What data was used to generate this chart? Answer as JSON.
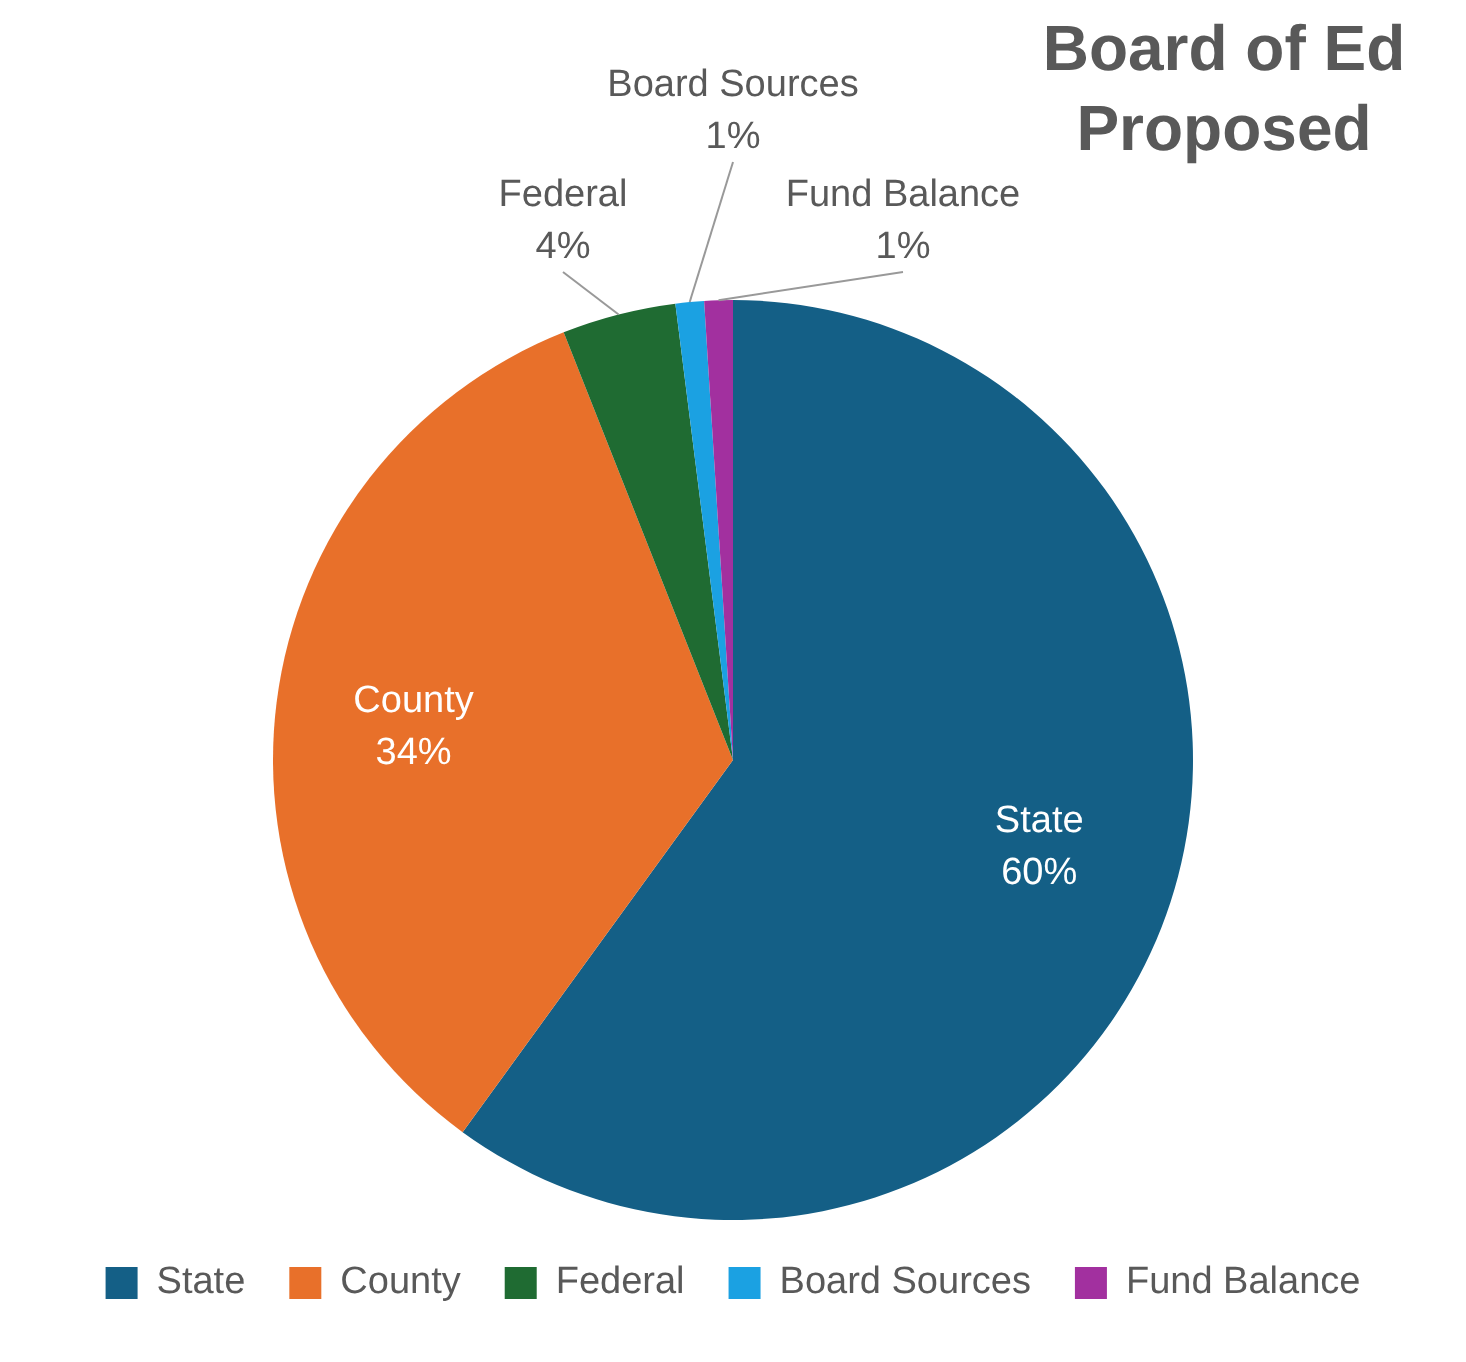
{
  "chart_data": {
    "type": "pie",
    "title": "Board of Ed Proposed",
    "categories": [
      "State",
      "County",
      "Federal",
      "Board Sources",
      "Fund Balance"
    ],
    "values": [
      60,
      34,
      4,
      1,
      1
    ],
    "colors": [
      "#145f86",
      "#e8702a",
      "#1f6b32",
      "#1ba1e2",
      "#a2309f"
    ],
    "value_labels": [
      "60%",
      "34%",
      "4%",
      "1%",
      "1%"
    ],
    "legend": "bottom"
  }
}
